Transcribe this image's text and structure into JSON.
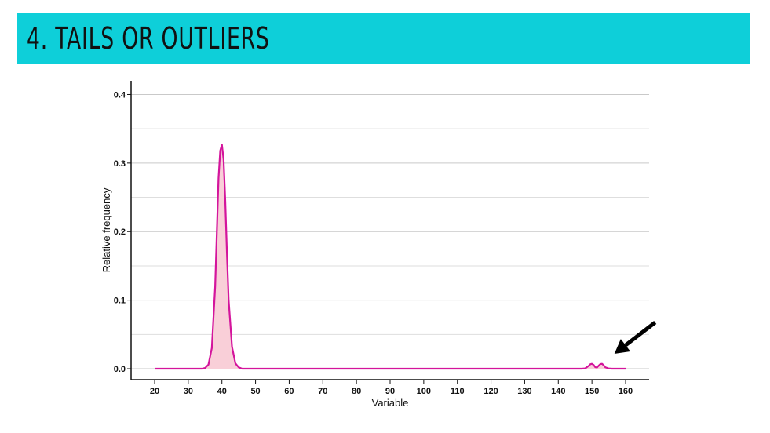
{
  "slide": {
    "title": "4. TAILS OR OUTLIERS",
    "banner_color": "#0ecfd9"
  },
  "chart_data": {
    "type": "area",
    "xlabel": "Variable",
    "ylabel": "Relative frequency",
    "xlim": [
      13,
      167
    ],
    "ylim": [
      -0.016,
      0.42
    ],
    "x_ticks": [
      20,
      30,
      40,
      50,
      60,
      70,
      80,
      90,
      100,
      110,
      120,
      130,
      140,
      150,
      160
    ],
    "y_ticks": [
      0.0,
      0.1,
      0.2,
      0.3,
      0.4
    ],
    "y_tick_labels": [
      "0.0",
      "0.1",
      "0.2",
      "0.3",
      "0.4"
    ],
    "grid": "horizontal",
    "line_color": "#d4159c",
    "fill_color": "#f9cfd8",
    "series": [
      {
        "x": [
          20,
          34,
          35,
          36,
          37,
          38,
          38.5,
          39,
          39.5,
          40,
          40.5,
          41,
          41.5,
          42,
          43,
          44,
          45,
          46,
          100,
          147,
          148,
          149,
          149.5,
          150,
          150.5,
          151,
          151.5,
          152,
          152.5,
          153,
          153.5,
          154,
          155,
          156,
          160
        ],
        "y": [
          0,
          0,
          0.001,
          0.006,
          0.03,
          0.12,
          0.2,
          0.278,
          0.318,
          0.327,
          0.305,
          0.245,
          0.168,
          0.1,
          0.032,
          0.008,
          0.002,
          0,
          0,
          0,
          0.0005,
          0.004,
          0.0065,
          0.0072,
          0.0055,
          0.0022,
          0.0018,
          0.0045,
          0.0068,
          0.0072,
          0.005,
          0.002,
          0.0003,
          0,
          0
        ]
      }
    ],
    "annotations": [
      {
        "type": "arrow",
        "points_to": [
          152,
          0.008
        ],
        "color": "#000000"
      }
    ]
  }
}
